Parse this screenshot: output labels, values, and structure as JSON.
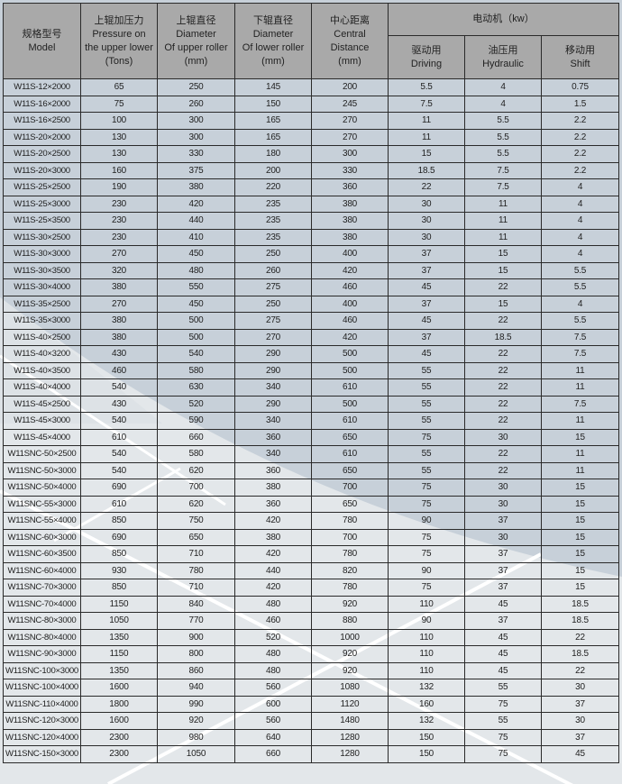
{
  "header": {
    "model": [
      "规格型号",
      "Model"
    ],
    "pressure": [
      "上辊加压力",
      "Pressure on",
      "the upper lower",
      "(Tons)"
    ],
    "upper_diameter": [
      "上辊直径",
      "Diameter",
      "Of upper roller",
      "(mm)"
    ],
    "lower_diameter": [
      "下辊直径",
      "Diameter",
      "Of lower roller",
      "(mm)"
    ],
    "central_distance": [
      "中心距离",
      "Central",
      "Distance",
      "(mm)"
    ],
    "motor": "电动机（kw）",
    "driving": [
      "驱动用",
      "Driving"
    ],
    "hydraulic": [
      "油压用",
      "Hydraulic"
    ],
    "shift": [
      "移动用",
      "Shift"
    ]
  },
  "rows": [
    [
      "W11S-12×2000",
      "65",
      "250",
      "145",
      "200",
      "5.5",
      "4",
      "0.75"
    ],
    [
      "W11S-16×2000",
      "75",
      "260",
      "150",
      "245",
      "7.5",
      "4",
      "1.5"
    ],
    [
      "W11S-16×2500",
      "100",
      "300",
      "165",
      "270",
      "11",
      "5.5",
      "2.2"
    ],
    [
      "W11S-20×2000",
      "130",
      "300",
      "165",
      "270",
      "11",
      "5.5",
      "2.2"
    ],
    [
      "W11S-20×2500",
      "130",
      "330",
      "180",
      "300",
      "15",
      "5.5",
      "2.2"
    ],
    [
      "W11S-20×3000",
      "160",
      "375",
      "200",
      "330",
      "18.5",
      "7.5",
      "2.2"
    ],
    [
      "W11S-25×2500",
      "190",
      "380",
      "220",
      "360",
      "22",
      "7.5",
      "4"
    ],
    [
      "W11S-25×3000",
      "230",
      "420",
      "235",
      "380",
      "30",
      "11",
      "4"
    ],
    [
      "W11S-25×3500",
      "230",
      "440",
      "235",
      "380",
      "30",
      "11",
      "4"
    ],
    [
      "W11S-30×2500",
      "230",
      "410",
      "235",
      "380",
      "30",
      "11",
      "4"
    ],
    [
      "W11S-30×3000",
      "270",
      "450",
      "250",
      "400",
      "37",
      "15",
      "4"
    ],
    [
      "W11S-30×3500",
      "320",
      "480",
      "260",
      "420",
      "37",
      "15",
      "5.5"
    ],
    [
      "W11S-30×4000",
      "380",
      "550",
      "275",
      "460",
      "45",
      "22",
      "5.5"
    ],
    [
      "W11S-35×2500",
      "270",
      "450",
      "250",
      "400",
      "37",
      "15",
      "4"
    ],
    [
      "W11S-35×3000",
      "380",
      "500",
      "275",
      "460",
      "45",
      "22",
      "5.5"
    ],
    [
      "W11S-40×2500",
      "380",
      "500",
      "270",
      "420",
      "37",
      "18.5",
      "7.5"
    ],
    [
      "W11S-40×3200",
      "430",
      "540",
      "290",
      "500",
      "45",
      "22",
      "7.5"
    ],
    [
      "W11S-40×3500",
      "460",
      "580",
      "290",
      "500",
      "55",
      "22",
      "11"
    ],
    [
      "W11S-40×4000",
      "540",
      "630",
      "340",
      "610",
      "55",
      "22",
      "11"
    ],
    [
      "W11S-45×2500",
      "430",
      "520",
      "290",
      "500",
      "55",
      "22",
      "7.5"
    ],
    [
      "W11S-45×3000",
      "540",
      "590",
      "340",
      "610",
      "55",
      "22",
      "11"
    ],
    [
      "W11S-45×4000",
      "610",
      "660",
      "360",
      "650",
      "75",
      "30",
      "15"
    ],
    [
      "W11SNC-50×2500",
      "540",
      "580",
      "340",
      "610",
      "55",
      "22",
      "11"
    ],
    [
      "W11SNC-50×3000",
      "540",
      "620",
      "360",
      "650",
      "55",
      "22",
      "11"
    ],
    [
      "W11SNC-50×4000",
      "690",
      "700",
      "380",
      "700",
      "75",
      "30",
      "15"
    ],
    [
      "W11SNC-55×3000",
      "610",
      "620",
      "360",
      "650",
      "75",
      "30",
      "15"
    ],
    [
      "W11SNC-55×4000",
      "850",
      "750",
      "420",
      "780",
      "90",
      "37",
      "15"
    ],
    [
      "W11SNC-60×3000",
      "690",
      "650",
      "380",
      "700",
      "75",
      "30",
      "15"
    ],
    [
      "W11SNC-60×3500",
      "850",
      "710",
      "420",
      "780",
      "75",
      "37",
      "15"
    ],
    [
      "W11SNC-60×4000",
      "930",
      "780",
      "440",
      "820",
      "90",
      "37",
      "15"
    ],
    [
      "W11SNC-70×3000",
      "850",
      "710",
      "420",
      "780",
      "75",
      "37",
      "15"
    ],
    [
      "W11SNC-70×4000",
      "1150",
      "840",
      "480",
      "920",
      "110",
      "45",
      "18.5"
    ],
    [
      "W11SNC-80×3000",
      "1050",
      "770",
      "460",
      "880",
      "90",
      "37",
      "18.5"
    ],
    [
      "W11SNC-80×4000",
      "1350",
      "900",
      "520",
      "1000",
      "110",
      "45",
      "22"
    ],
    [
      "W11SNC-90×3000",
      "1150",
      "800",
      "480",
      "920",
      "110",
      "45",
      "18.5"
    ],
    [
      "W11SNC-100×3000",
      "1350",
      "860",
      "480",
      "920",
      "110",
      "45",
      "22"
    ],
    [
      "W11SNC-100×4000",
      "1600",
      "940",
      "560",
      "1080",
      "132",
      "55",
      "30"
    ],
    [
      "W11SNC-110×4000",
      "1800",
      "990",
      "600",
      "1120",
      "160",
      "75",
      "37"
    ],
    [
      "W11SNC-120×3000",
      "1600",
      "920",
      "560",
      "1480",
      "132",
      "55",
      "30"
    ],
    [
      "W11SNC-120×4000",
      "2300",
      "980",
      "640",
      "1280",
      "150",
      "75",
      "37"
    ],
    [
      "W11SNC-150×3000",
      "2300",
      "1050",
      "660",
      "1280",
      "150",
      "75",
      "45"
    ]
  ],
  "colors": {
    "header_bg": "#a9a9a9",
    "cell_bg": "#c7d0d9",
    "light_region": "#e3e7ea",
    "border": "#2a2a2a"
  }
}
